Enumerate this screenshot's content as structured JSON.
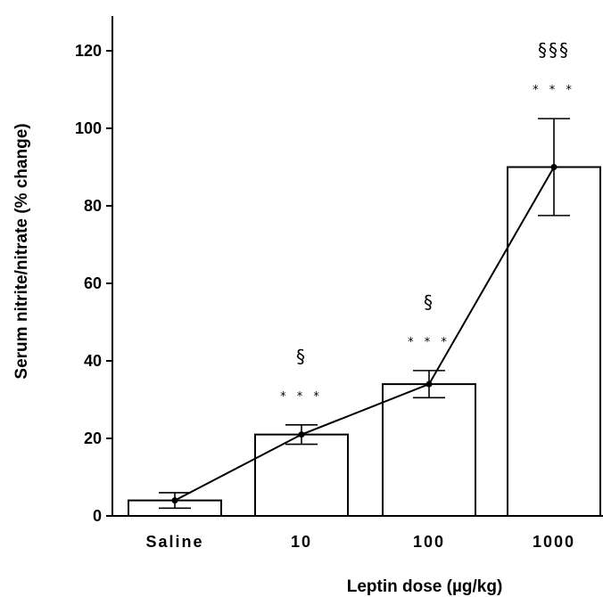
{
  "chart_data": {
    "type": "bar",
    "categories": [
      "Saline",
      "10",
      "100",
      "1000"
    ],
    "values": [
      4,
      21,
      34,
      90
    ],
    "errors": [
      2,
      2.5,
      3.5,
      12.5
    ],
    "overlay_line": true,
    "xlabel": "Leptin  dose  (µg/kg)",
    "ylabel": "Serum  nitrite/nitrate  (%  change)",
    "ylim": [
      0,
      120
    ],
    "yticks": [
      0,
      20,
      40,
      60,
      80,
      100,
      120
    ],
    "grid": false,
    "annotations": [
      {
        "category": "Saline",
        "stars": "",
        "section": ""
      },
      {
        "category": "10",
        "stars": "* * *",
        "section": "§"
      },
      {
        "category": "100",
        "stars": "* * *",
        "section": "§"
      },
      {
        "category": "1000",
        "stars": "* * *",
        "section": "§§§"
      }
    ]
  }
}
